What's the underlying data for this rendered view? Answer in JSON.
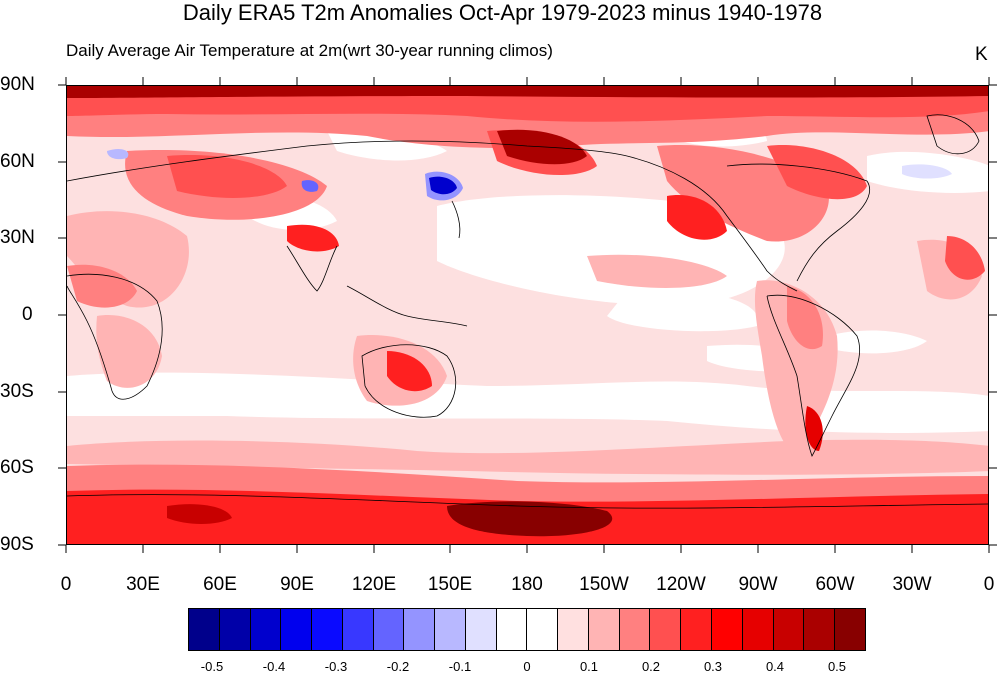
{
  "title": "Daily ERA5 T2m Anomalies Oct-Apr 1979-2023 minus 1940-1978",
  "subtitle": "Daily Average Air Temperature at 2m(wrt 30-year running climos)",
  "units": "K",
  "lat_labels": [
    "90N",
    "60N",
    "30N",
    "0",
    "30S",
    "60S",
    "90S"
  ],
  "lon_labels": [
    "0",
    "30E",
    "60E",
    "90E",
    "120E",
    "150E",
    "180",
    "150W",
    "120W",
    "90W",
    "60W",
    "30W",
    "0"
  ],
  "colorbar": {
    "labels": [
      "-0.5",
      "-0.4",
      "-0.3",
      "-0.2",
      "-0.1",
      "0",
      "0.1",
      "0.2",
      "0.3",
      "0.4",
      "0.5"
    ],
    "colors": [
      "#00008b",
      "#0000a8",
      "#0000cd",
      "#0000ee",
      "#0a0aff",
      "#3838ff",
      "#6464ff",
      "#9494ff",
      "#b8b8ff",
      "#e0e0ff",
      "#ffffff",
      "#ffffff",
      "#ffe0e0",
      "#ffb4b4",
      "#ff8080",
      "#ff5050",
      "#ff2020",
      "#ff0000",
      "#e60000",
      "#c80000",
      "#aa0000",
      "#880000"
    ]
  }
}
